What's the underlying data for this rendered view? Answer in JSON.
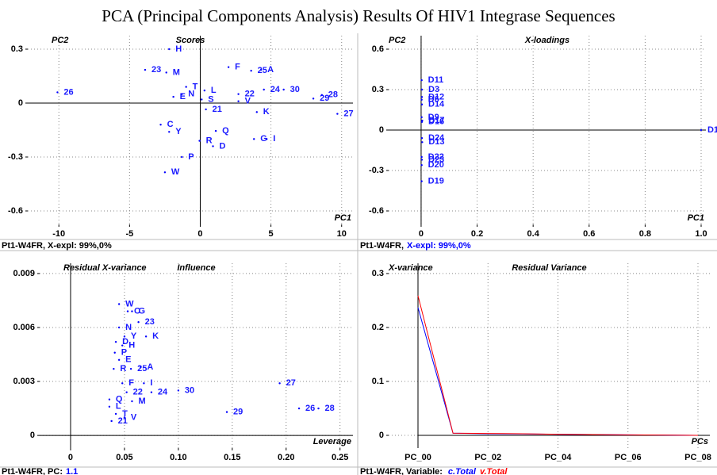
{
  "title": "PCA (Principal Components Analysis) Results Of HIV1 Integrase Sequences",
  "chart_data": [
    {
      "type": "scatter",
      "title": "Scores",
      "x_label": "PC1",
      "y_label": "PC2",
      "footer": [
        {
          "text": "Pt1-W4FR, X-expl: 99%,0%",
          "color": "#000000"
        }
      ],
      "color": "#0000ff",
      "labels": [
        "H",
        "23",
        "M",
        "F",
        "25",
        "A",
        "T",
        "L",
        "22",
        "24",
        "30",
        "29",
        "28",
        "27",
        "26",
        "E",
        "N",
        "S",
        "V",
        "21",
        "K",
        "C",
        "Y",
        "Q",
        "R",
        "D",
        "G",
        "I",
        "P",
        "W"
      ],
      "x": [
        -2.2,
        -3.9,
        -2.4,
        2.0,
        3.6,
        4.3,
        -1.0,
        0.3,
        2.7,
        4.5,
        5.9,
        8.0,
        8.6,
        9.7,
        -10.1,
        -1.9,
        -1.3,
        0.1,
        2.7,
        0.4,
        4.0,
        -2.8,
        -2.2,
        1.1,
        -0.05,
        0.9,
        3.8,
        4.7,
        -1.3,
        -2.5
      ],
      "values": [
        0.3,
        0.185,
        0.17,
        0.2,
        0.18,
        0.185,
        0.09,
        0.07,
        0.05,
        0.075,
        0.075,
        0.025,
        0.045,
        -0.06,
        0.06,
        0.035,
        0.05,
        0.02,
        0.01,
        -0.035,
        -0.05,
        -0.12,
        -0.16,
        -0.155,
        -0.21,
        -0.24,
        -0.2,
        -0.2,
        -0.3,
        -0.385
      ],
      "xlim": [
        -12.2,
        10.8
      ],
      "ylim": [
        -0.675,
        0.375
      ],
      "xticks": [
        -10,
        -5,
        0,
        5,
        10
      ],
      "yticks": [
        -0.6,
        -0.3,
        0,
        0.3
      ],
      "grid": true
    },
    {
      "type": "scatter",
      "title": "X-loadings",
      "x_label": "PC1",
      "y_label": "PC2",
      "footer": [
        {
          "text": "Pt1-W4FR,",
          "color": "#000000"
        },
        {
          "text": "X-expl: 99%,0%",
          "color": "#0000ff"
        }
      ],
      "color": "#0000ff",
      "labels": [
        "D1",
        "D11",
        "D3",
        "D12",
        "D6",
        "D14",
        "D9",
        "D17",
        "D16",
        "D24",
        "D13",
        "D22",
        "D23",
        "D20",
        "D19"
      ],
      "x": [
        1.0,
        0.002,
        0.003,
        0.003,
        0.002,
        0.003,
        0.002,
        0.004,
        0.003,
        0.003,
        0.004,
        0.002,
        0.003,
        0.002,
        0.002
      ],
      "values": [
        0,
        0.37,
        0.3,
        0.245,
        0.225,
        0.19,
        0.095,
        0.07,
        0.06,
        -0.06,
        -0.09,
        -0.2,
        -0.22,
        -0.26,
        -0.38
      ],
      "xlim": [
        -0.116,
        1.017
      ],
      "ylim": [
        -0.7,
        0.7
      ],
      "xticks": [
        0,
        0.2,
        0.4,
        0.6,
        0.8,
        {
          "value": 1,
          "label": "1.0"
        }
      ],
      "yticks": [
        -0.6,
        -0.3,
        0,
        0.3,
        0.6
      ],
      "grid": true
    },
    {
      "type": "scatter",
      "title": "Influence",
      "x_label": "Leverage",
      "y_label": "Residual X-variance",
      "footer": [
        {
          "text": "Pt1-W4FR, PC:",
          "color": "#000000"
        },
        {
          "text": "1.1",
          "color": "#0000ff"
        }
      ],
      "color": "#0000ff",
      "labels": [
        "W",
        "C",
        "G",
        "23",
        "N",
        "Y",
        "K",
        "D",
        "H",
        "P",
        "E",
        "R",
        "25",
        "A",
        "27",
        "F",
        "I",
        "22",
        "30",
        "24",
        "Q",
        "M",
        "L",
        "T",
        "V",
        "29",
        "26",
        "28",
        "21"
      ],
      "x": [
        0.045,
        0.053,
        0.057,
        0.063,
        0.045,
        0.05,
        0.07,
        0.042,
        0.048,
        0.041,
        0.045,
        0.04,
        0.056,
        0.065,
        0.194,
        0.048,
        0.068,
        0.052,
        0.1,
        0.075,
        0.036,
        0.057,
        0.036,
        0.042,
        0.05,
        0.145,
        0.212,
        0.23,
        0.038
      ],
      "values": [
        0.0073,
        0.0069,
        0.0069,
        0.0063,
        0.006,
        0.0055,
        0.0055,
        0.0052,
        0.005,
        0.0046,
        0.0042,
        0.0037,
        0.0037,
        0.0038,
        0.0029,
        0.0029,
        0.0029,
        0.0024,
        0.0025,
        0.0024,
        0.002,
        0.0019,
        0.0016,
        0.0012,
        0.001,
        0.0013,
        0.0015,
        0.0015,
        0.0008
      ],
      "xlim": [
        -0.0287,
        0.262
      ],
      "ylim": [
        -0.0007,
        0.00957
      ],
      "xticks": [
        0,
        0.05,
        {
          "value": 0.1,
          "label": "0.10"
        },
        0.15,
        {
          "value": 0.2,
          "label": "0.20"
        },
        0.25
      ],
      "yticks": [
        0,
        0.003,
        0.006,
        0.009
      ],
      "grid": true
    },
    {
      "type": "line",
      "title": "Residual  Variance",
      "x_label": "PCs",
      "y_label": "X-variance",
      "footer": [
        {
          "text": "Pt1-W4FR, Variable:",
          "color": "#000000"
        }
      ],
      "categories": [
        "PC_00",
        null,
        "PC_02",
        null,
        "PC_04",
        null,
        "PC_06",
        null,
        "PC_08"
      ],
      "series": [
        {
          "name": "c.Total",
          "color": "#0000ff",
          "values": [
            0.237,
            0.004,
            0.003,
            0.0025,
            0.002,
            0.0015,
            0.001,
            0.0005,
            0
          ]
        },
        {
          "name": "v.Total",
          "color": "#ff0000",
          "values": [
            0.259,
            0.004,
            0.0035,
            0.003,
            0.002,
            0.0015,
            0.001,
            0.0005,
            0
          ]
        }
      ],
      "ylim": [
        -0.0235,
        0.319
      ],
      "yticks": [
        0,
        0.1,
        0.2,
        0.3
      ],
      "grid": true
    }
  ]
}
